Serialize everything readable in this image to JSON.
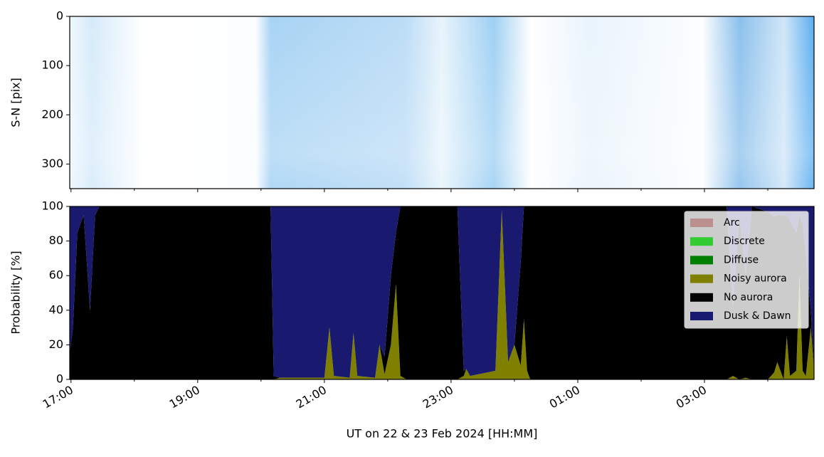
{
  "chart_data": [
    {
      "type": "image",
      "ylabel": "S-N [pix]",
      "ylim": [
        0,
        350
      ],
      "y_inverted": true,
      "yticks": [
        0,
        100,
        200,
        300
      ]
    },
    {
      "type": "stackedarea",
      "ylabel": "Probability [%]",
      "xlabel": "UT on 22 & 23 Feb 2024 [HH:MM]",
      "xlim": [
        16.98,
        28.73
      ],
      "xticks": [
        {
          "value": 17,
          "label": "17:00"
        },
        {
          "value": 19,
          "label": "19:00"
        },
        {
          "value": 21,
          "label": "21:00"
        },
        {
          "value": 23,
          "label": "23:00"
        },
        {
          "value": 25,
          "label": "01:00"
        },
        {
          "value": 27,
          "label": "03:00"
        }
      ],
      "xminorticks": [
        18,
        20,
        22,
        24,
        26,
        28
      ],
      "ylim": [
        0,
        100
      ],
      "yticks": [
        0,
        20,
        40,
        60,
        80,
        100
      ],
      "legend": "upper right",
      "x": [
        16.98,
        17.03,
        17.1,
        17.2,
        17.3,
        17.38,
        17.45,
        20.15,
        20.2,
        20.3,
        21.0,
        21.08,
        21.15,
        21.4,
        21.46,
        21.52,
        21.8,
        21.87,
        21.95,
        22.05,
        22.13,
        22.2,
        22.3,
        23.1,
        23.2,
        23.24,
        23.3,
        23.7,
        23.8,
        23.9,
        24.0,
        24.1,
        24.15,
        24.2,
        24.25,
        27.35,
        27.45,
        27.55,
        27.65,
        27.75,
        28.0,
        28.1,
        28.15,
        28.25,
        28.3,
        28.35,
        28.45,
        28.5,
        28.55,
        28.6,
        28.68,
        28.73
      ],
      "series": [
        {
          "name": "Arc",
          "color": "#bc8f8f",
          "values": [
            0,
            0,
            0,
            0,
            0,
            0,
            0,
            0,
            0,
            0,
            0,
            0,
            0,
            0,
            0,
            0,
            0,
            0,
            0,
            0,
            0,
            0,
            0,
            0,
            0,
            0,
            0,
            0,
            0,
            0,
            0,
            0,
            0,
            0,
            0,
            0,
            0,
            0,
            0,
            0,
            0,
            0,
            0,
            0,
            0,
            0,
            0,
            0,
            0,
            0,
            0,
            0
          ]
        },
        {
          "name": "Discrete",
          "color": "#32cd32",
          "values": [
            0,
            0,
            0,
            0,
            0,
            0,
            0,
            0,
            0,
            0,
            0,
            0,
            0,
            0,
            0,
            0,
            0,
            0,
            0,
            0,
            0,
            0,
            0,
            0,
            0,
            0,
            0,
            0,
            0,
            0,
            0,
            0,
            0,
            0,
            0,
            0,
            0,
            0,
            0,
            0,
            0,
            0,
            0,
            0,
            0,
            0,
            0,
            0,
            0,
            0,
            0,
            0
          ]
        },
        {
          "name": "Diffuse",
          "color": "#008000",
          "values": [
            0,
            0,
            0,
            0,
            0,
            0,
            0,
            0,
            0,
            0,
            0,
            0,
            0,
            0,
            0,
            0,
            0,
            0,
            0,
            0,
            0,
            0,
            0,
            0,
            0,
            0,
            0,
            0,
            0,
            0,
            0,
            0,
            0,
            0,
            0,
            0,
            0,
            0,
            0,
            0,
            0,
            0,
            0,
            0,
            0,
            0,
            0,
            0,
            0,
            0,
            0,
            0
          ]
        },
        {
          "name": "Noisy aurora",
          "color": "#808000",
          "values": [
            0,
            0,
            0,
            0,
            0,
            0,
            0,
            0,
            0,
            1,
            1,
            30,
            2,
            1,
            27,
            2,
            1,
            20,
            3,
            20,
            55,
            2,
            0,
            0,
            2,
            6,
            2,
            5,
            98,
            10,
            20,
            8,
            35,
            5,
            0,
            0,
            2,
            0,
            1,
            0,
            0,
            4,
            10,
            0,
            25,
            2,
            5,
            60,
            5,
            2,
            30,
            5
          ]
        },
        {
          "name": "No aurora",
          "color": "#000000",
          "values": [
            15,
            30,
            85,
            95,
            40,
            95,
            100,
            100,
            2,
            0,
            0,
            0,
            0,
            0,
            0,
            0,
            0,
            0,
            10,
            40,
            30,
            98,
            100,
            100,
            3,
            0,
            0,
            0,
            0,
            0,
            0,
            60,
            65,
            95,
            100,
            100,
            40,
            95,
            60,
            100,
            97,
            90,
            85,
            95,
            70,
            90,
            80,
            35,
            85,
            70,
            10,
            0
          ]
        },
        {
          "name": "Dusk & Dawn",
          "color": "#191970",
          "values": [
            85,
            70,
            15,
            5,
            60,
            5,
            0,
            0,
            98,
            99,
            99,
            70,
            98,
            99,
            73,
            98,
            99,
            80,
            87,
            40,
            15,
            0,
            0,
            0,
            95,
            94,
            98,
            95,
            2,
            90,
            80,
            32,
            0,
            0,
            0,
            0,
            58,
            5,
            39,
            0,
            3,
            6,
            5,
            5,
            5,
            8,
            15,
            5,
            10,
            28,
            60,
            95
          ]
        }
      ]
    }
  ]
}
